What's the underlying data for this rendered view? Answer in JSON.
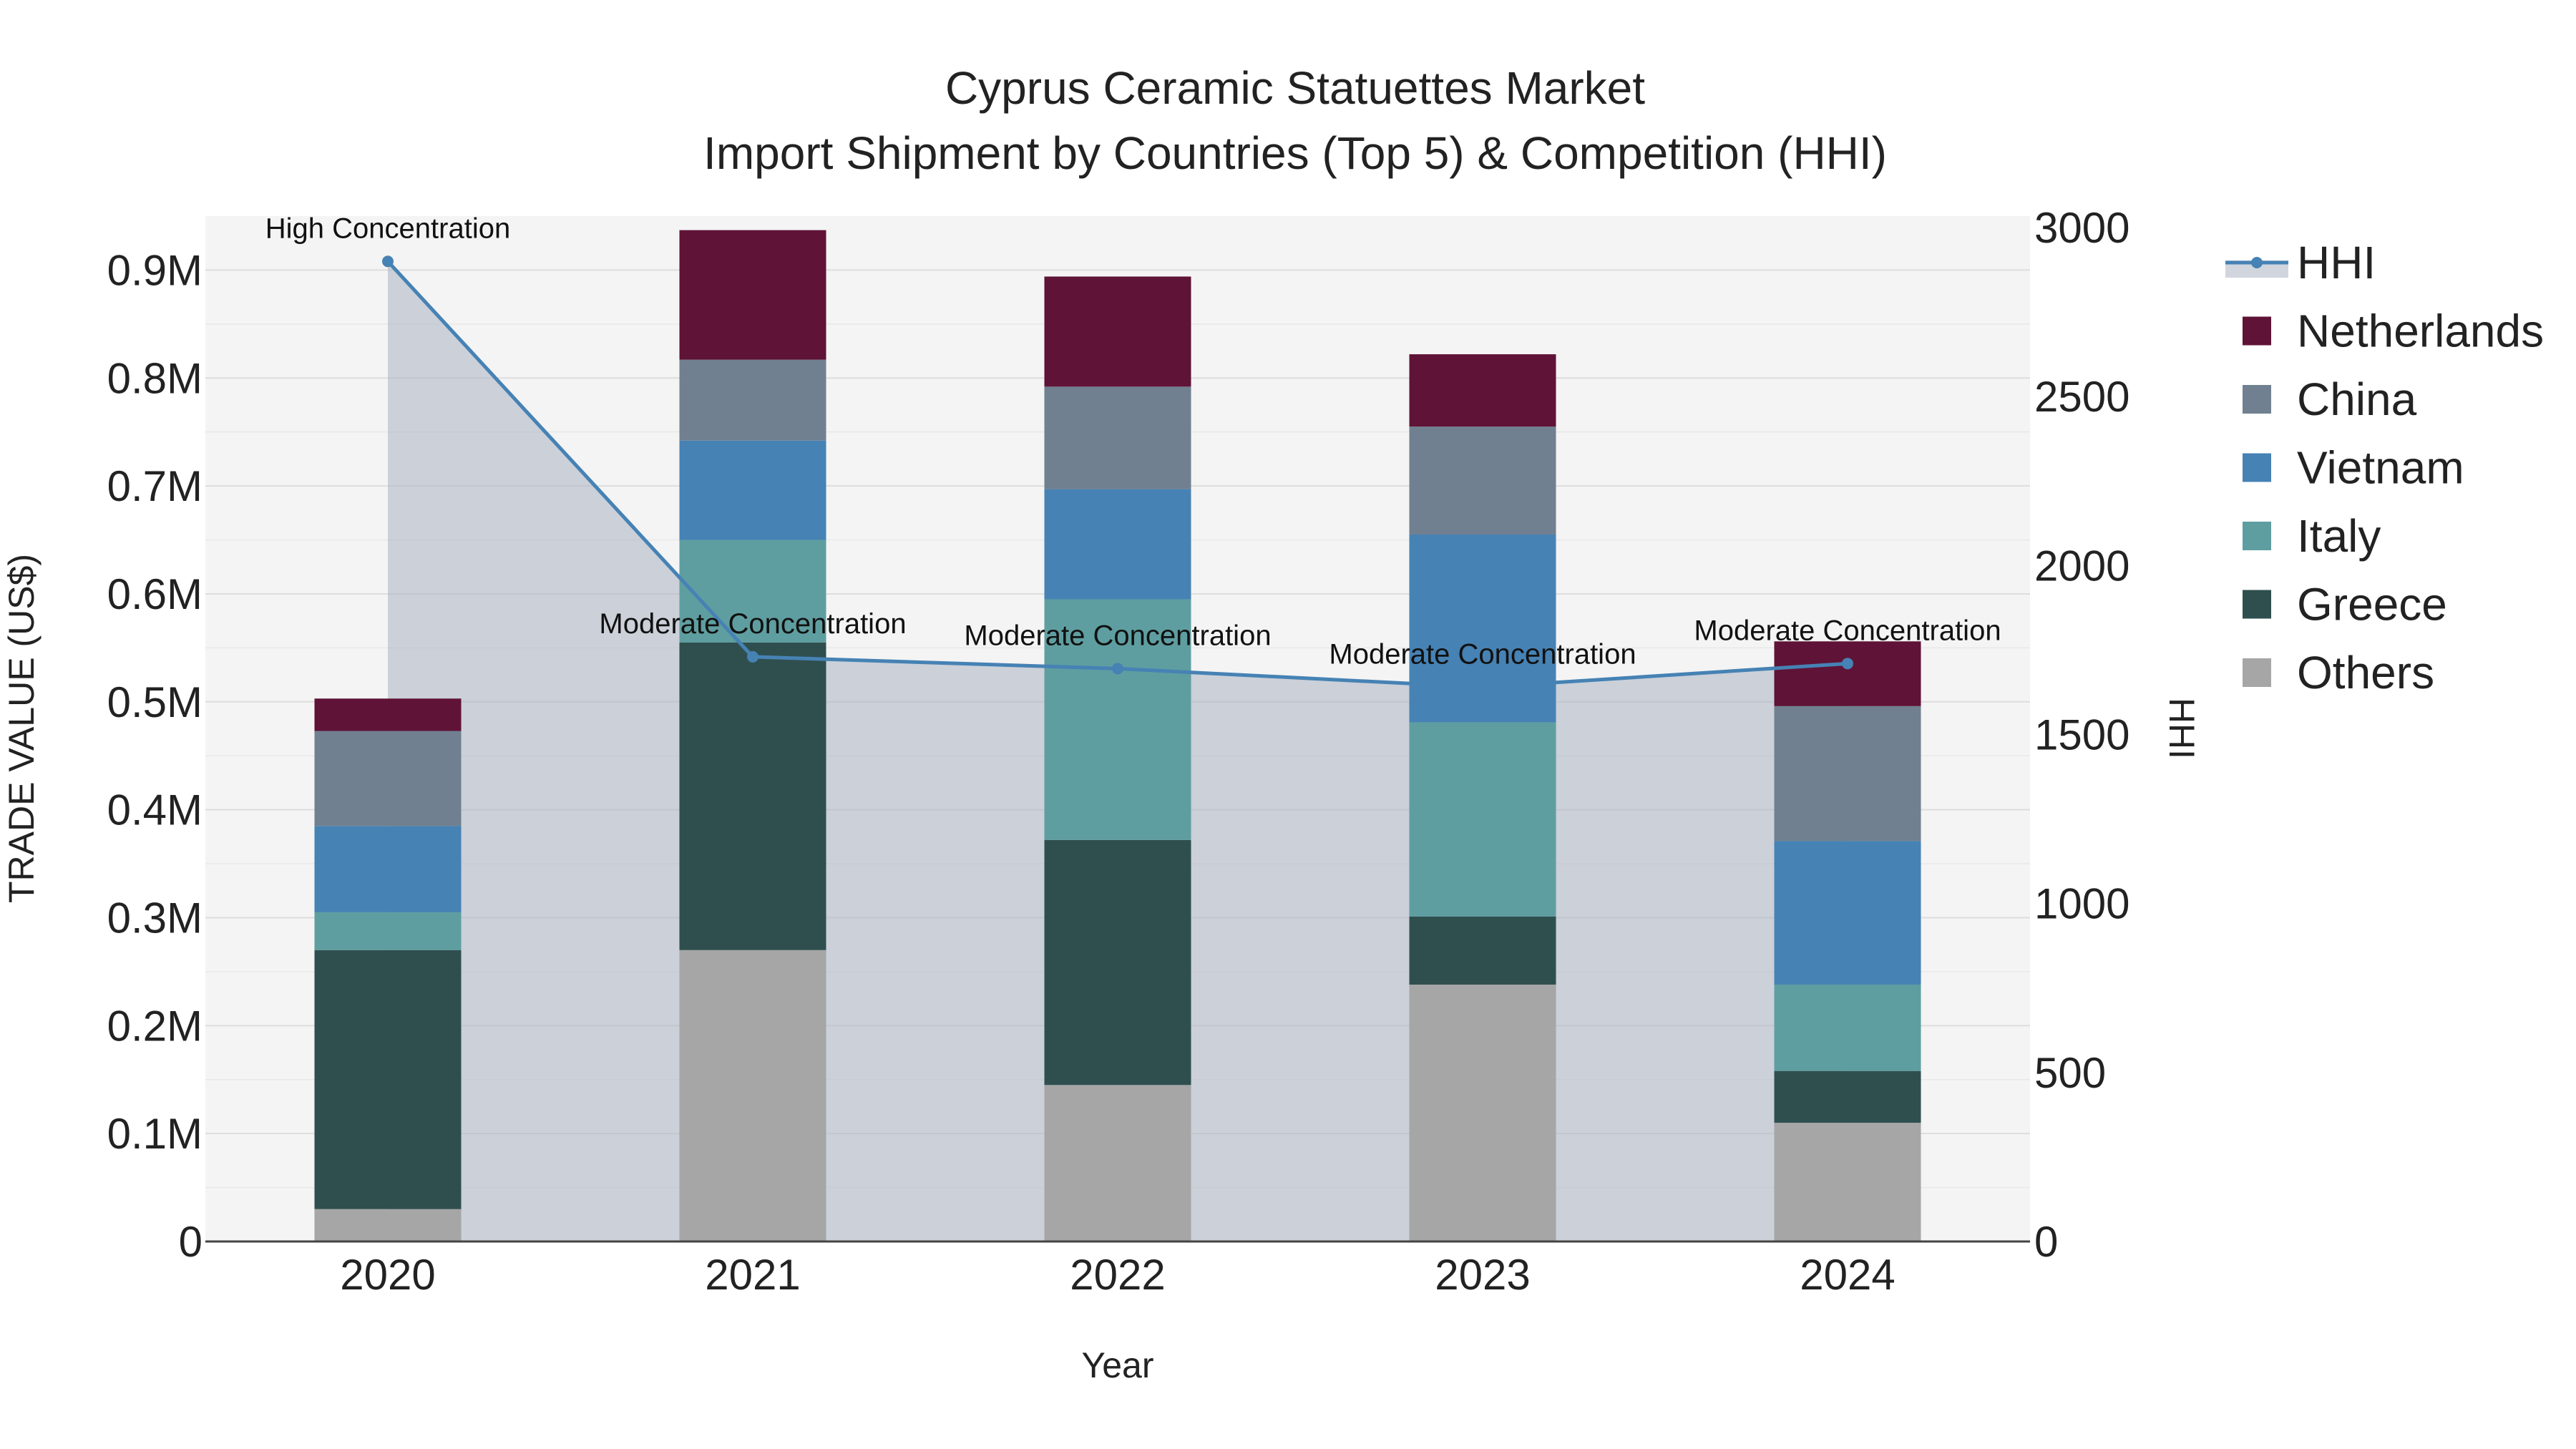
{
  "chart_data": {
    "type": "bar",
    "stacking": "stacked",
    "title": "Cyprus Ceramic Statuettes Market",
    "subtitle": "Import Shipment by Countries (Top 5) & Competition (HHI)",
    "xlabel": "Year",
    "ylabel": "TRADE VALUE (US$)",
    "y2label": "HHI",
    "categories": [
      "2020",
      "2021",
      "2022",
      "2023",
      "2024"
    ],
    "ylim": [
      0,
      950000
    ],
    "y2lim": [
      0,
      3000
    ],
    "y_ticks": [
      0,
      100000,
      200000,
      300000,
      400000,
      500000,
      600000,
      700000,
      800000,
      900000
    ],
    "y_tick_labels": [
      "0",
      "0.1M",
      "0.2M",
      "0.3M",
      "0.4M",
      "0.5M",
      "0.6M",
      "0.7M",
      "0.8M",
      "0.9M"
    ],
    "y2_ticks": [
      0,
      500,
      1000,
      1500,
      2000,
      2500,
      3000
    ],
    "y2_tick_labels": [
      "0",
      "500",
      "1000",
      "1500",
      "2000",
      "2500",
      "3000"
    ],
    "series": [
      {
        "name": "Others",
        "color": "#a6a6a6",
        "values": [
          30000,
          270000,
          145000,
          238000,
          110000
        ]
      },
      {
        "name": "Greece",
        "color": "#2f4f4f",
        "values": [
          240000,
          285000,
          227000,
          63000,
          48000
        ]
      },
      {
        "name": "Italy",
        "color": "#5f9ea0",
        "values": [
          35000,
          95000,
          223000,
          180000,
          80000
        ]
      },
      {
        "name": "Vietnam",
        "color": "#4682b4",
        "values": [
          80000,
          92000,
          102000,
          174000,
          133000
        ]
      },
      {
        "name": "China",
        "color": "#708090",
        "values": [
          88000,
          75000,
          95000,
          100000,
          125000
        ]
      },
      {
        "name": "Netherlands",
        "color": "#5f1336",
        "values": [
          30000,
          120000,
          102000,
          67000,
          60000
        ]
      }
    ],
    "hhi": {
      "name": "HHI",
      "color": "#4682b4",
      "values": [
        2900,
        1730,
        1695,
        1640,
        1710
      ],
      "annotations": [
        "High Concentration",
        "Moderate Concentration",
        "Moderate Concentration",
        "Moderate Concentration",
        "Moderate Concentration"
      ]
    },
    "legend": [
      "HHI",
      "Netherlands",
      "China",
      "Vietnam",
      "Italy",
      "Greece",
      "Others"
    ],
    "legend_position": "right",
    "grid": true
  }
}
